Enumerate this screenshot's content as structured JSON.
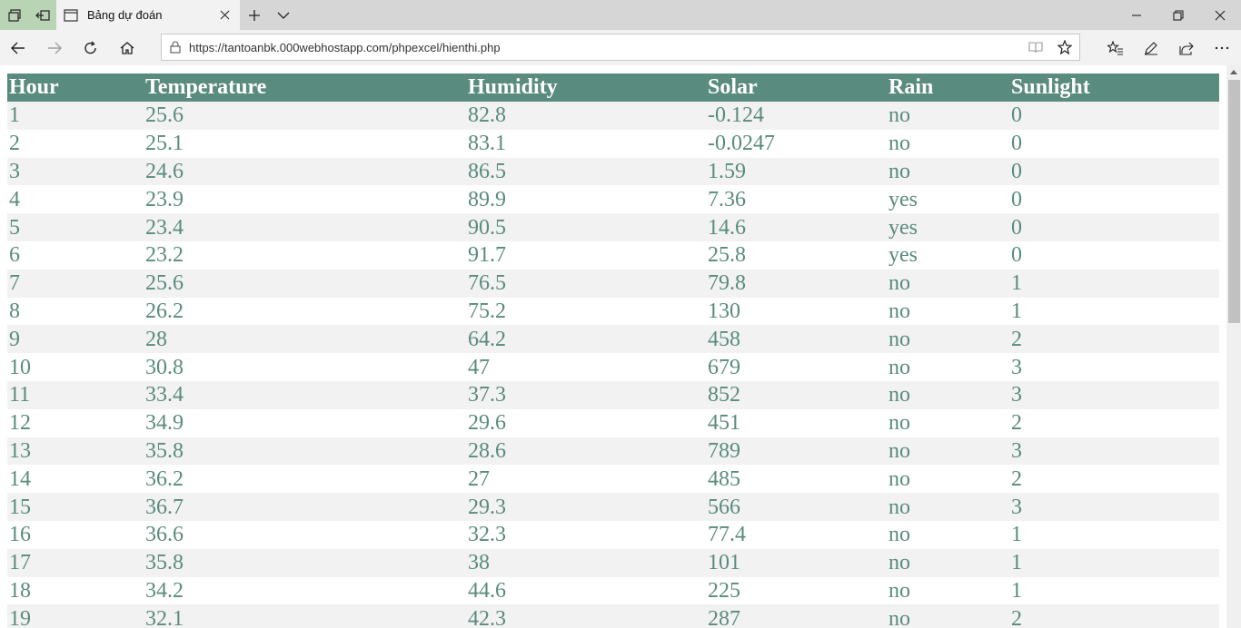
{
  "browser": {
    "tab_title": "Bảng dự đoán",
    "url": "https://tantoanbk.000webhostapp.com/phpexcel/hienthi.php"
  },
  "table": {
    "headers": [
      "Hour",
      "Temperature",
      "Humidity",
      "Solar",
      "Rain",
      "Sunlight"
    ],
    "rows": [
      [
        "1",
        "25.6",
        "82.8",
        "-0.124",
        "no",
        "0"
      ],
      [
        "2",
        "25.1",
        "83.1",
        "-0.0247",
        "no",
        "0"
      ],
      [
        "3",
        "24.6",
        "86.5",
        "1.59",
        "no",
        "0"
      ],
      [
        "4",
        "23.9",
        "89.9",
        "7.36",
        "yes",
        "0"
      ],
      [
        "5",
        "23.4",
        "90.5",
        "14.6",
        "yes",
        "0"
      ],
      [
        "6",
        "23.2",
        "91.7",
        "25.8",
        "yes",
        "0"
      ],
      [
        "7",
        "25.6",
        "76.5",
        "79.8",
        "no",
        "1"
      ],
      [
        "8",
        "26.2",
        "75.2",
        "130",
        "no",
        "1"
      ],
      [
        "9",
        "28",
        "64.2",
        "458",
        "no",
        "2"
      ],
      [
        "10",
        "30.8",
        "47",
        "679",
        "no",
        "3"
      ],
      [
        "11",
        "33.4",
        "37.3",
        "852",
        "no",
        "3"
      ],
      [
        "12",
        "34.9",
        "29.6",
        "451",
        "no",
        "2"
      ],
      [
        "13",
        "35.8",
        "28.6",
        "789",
        "no",
        "3"
      ],
      [
        "14",
        "36.2",
        "27",
        "485",
        "no",
        "2"
      ],
      [
        "15",
        "36.7",
        "29.3",
        "566",
        "no",
        "3"
      ],
      [
        "16",
        "36.6",
        "32.3",
        "77.4",
        "no",
        "1"
      ],
      [
        "17",
        "35.8",
        "38",
        "101",
        "no",
        "1"
      ],
      [
        "18",
        "34.2",
        "44.6",
        "225",
        "no",
        "1"
      ],
      [
        "19",
        "32.1",
        "42.3",
        "287",
        "no",
        "2"
      ]
    ]
  },
  "colors": {
    "header_bg": "#598b7e",
    "cell_text": "#598b7e",
    "stripe": "#f2f2f2"
  }
}
